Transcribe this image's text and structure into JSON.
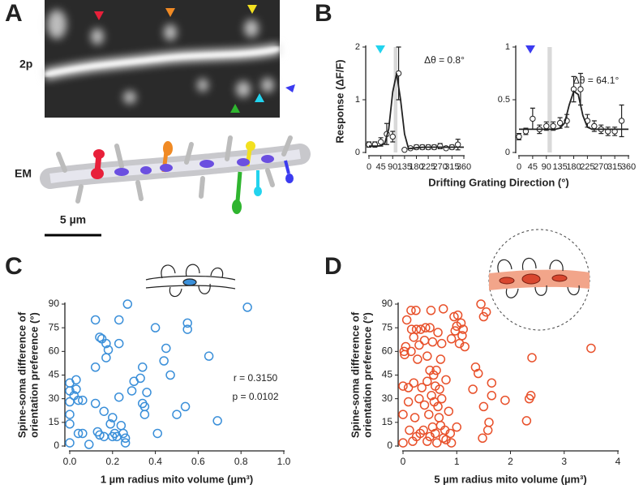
{
  "figure": {
    "panel_labels": [
      "A",
      "B",
      "C",
      "D"
    ],
    "image_labels": [
      "2p",
      "EM"
    ],
    "scale_bar": "5 µm",
    "b_ylabel": "Response (ΔF/F)",
    "b_xlabel": "Drifting Grating Direction (°)"
  },
  "chart_data": [
    {
      "type": "line",
      "color": "#222222",
      "marker_color": "#22d3ee",
      "highlight_x": [
        94,
        108
      ],
      "annotations": [
        "Δθ = 0.8°"
      ],
      "xlim": [
        0,
        360
      ],
      "xticks": [
        0,
        45,
        90,
        135,
        180,
        225,
        270,
        315,
        360
      ],
      "ylim": [
        0,
        2
      ],
      "yticks": [
        0,
        1,
        2
      ],
      "series": [
        {
          "x": [
            0,
            22.5,
            45,
            67.5,
            90,
            112.5,
            135,
            157.5,
            180,
            202.5,
            225,
            247.5,
            270,
            292.5,
            315,
            337.5
          ],
          "values": [
            0.15,
            0.15,
            0.2,
            0.35,
            0.3,
            1.5,
            0.05,
            0.08,
            0.1,
            0.1,
            0.1,
            0.1,
            0.12,
            0.08,
            0.1,
            0.15
          ],
          "errors": [
            0.05,
            0.05,
            0.08,
            0.2,
            0.1,
            0.5,
            0.02,
            0.03,
            0.04,
            0.04,
            0.04,
            0.04,
            0.05,
            0.03,
            0.04,
            0.1
          ]
        },
        {
          "x": [
            0,
            15,
            30,
            45,
            60,
            75,
            90,
            105,
            120,
            135,
            150,
            165,
            180,
            210,
            240,
            270,
            300,
            330,
            360
          ],
          "values": [
            0.12,
            0.12,
            0.12,
            0.13,
            0.17,
            0.45,
            1.15,
            1.5,
            1.0,
            0.35,
            0.07,
            0.08,
            0.09,
            0.1,
            0.1,
            0.1,
            0.1,
            0.1,
            0.1
          ]
        }
      ]
    },
    {
      "type": "line",
      "color": "#222222",
      "marker_color": "#3b3bf0",
      "highlight_x": [
        94,
        108
      ],
      "annotations": [
        "Δθ = 64.1°"
      ],
      "xlim": [
        0,
        360
      ],
      "xticks": [
        0,
        45,
        90,
        135,
        180,
        225,
        270,
        315,
        360
      ],
      "ylim": [
        0,
        1
      ],
      "yticks": [
        0,
        0.5,
        1
      ],
      "series": [
        {
          "x": [
            0,
            22.5,
            45,
            67.5,
            90,
            112.5,
            135,
            157.5,
            180,
            202.5,
            225,
            247.5,
            270,
            292.5,
            315,
            337.5
          ],
          "values": [
            0.15,
            0.2,
            0.32,
            0.22,
            0.25,
            0.25,
            0.28,
            0.3,
            0.6,
            0.6,
            0.3,
            0.25,
            0.22,
            0.2,
            0.2,
            0.3
          ],
          "errors": [
            0.03,
            0.03,
            0.1,
            0.04,
            0.04,
            0.04,
            0.05,
            0.06,
            0.12,
            0.15,
            0.06,
            0.05,
            0.04,
            0.04,
            0.04,
            0.15
          ]
        },
        {
          "x": [
            0,
            30,
            60,
            90,
            120,
            135,
            150,
            165,
            180,
            195,
            210,
            225,
            240,
            270,
            300,
            330,
            360
          ],
          "values": [
            0.22,
            0.22,
            0.22,
            0.22,
            0.22,
            0.23,
            0.28,
            0.45,
            0.58,
            0.55,
            0.35,
            0.24,
            0.22,
            0.22,
            0.22,
            0.22,
            0.22
          ]
        }
      ]
    },
    {
      "type": "scatter",
      "color": "#3a8fd9",
      "xlabel": "1 µm radius mito volume (µm³)",
      "ylabel": [
        "Spine-soma difference of",
        "orientation preference (°)"
      ],
      "annotations": [
        "r = 0.3150",
        "p = 0.0102"
      ],
      "xlim": [
        0,
        1
      ],
      "xticks": [
        {
          "value": 0,
          "label": "0.0"
        },
        0.2,
        0.4,
        0.6,
        0.8,
        {
          "value": 1,
          "label": "1.0"
        }
      ],
      "ylim": [
        0,
        90
      ],
      "yticks": [
        0,
        15,
        30,
        45,
        60,
        75,
        90
      ],
      "x": [
        0,
        0,
        0,
        0,
        0,
        0,
        0.02,
        0.03,
        0.03,
        0.04,
        0.06,
        0.06,
        0.04,
        0.09,
        0.12,
        0.12,
        0.12,
        0.13,
        0.14,
        0.14,
        0.15,
        0.16,
        0.16,
        0.17,
        0.17,
        0.18,
        0.19,
        0.2,
        0.2,
        0.21,
        0.22,
        0.23,
        0.23,
        0.23,
        0.24,
        0.25,
        0.26,
        0.26,
        0.27,
        0.29,
        0.3,
        0.33,
        0.34,
        0.34,
        0.35,
        0.35,
        0.36,
        0.4,
        0.41,
        0.44,
        0.45,
        0.47,
        0.5,
        0.54,
        0.55,
        0.55,
        0.65,
        0.69,
        0.83
      ],
      "values": [
        2,
        14,
        20,
        28,
        35,
        40,
        32,
        42,
        36,
        29,
        8,
        29,
        8,
        1,
        50,
        80,
        27,
        9,
        7,
        69,
        68,
        6,
        22,
        65,
        56,
        61,
        14,
        6,
        18,
        8,
        6,
        65,
        31,
        80,
        13,
        8,
        5,
        2,
        90,
        35,
        41,
        43,
        50,
        27,
        25,
        20,
        34,
        75,
        8,
        54,
        62,
        45,
        20,
        25,
        78,
        74,
        57,
        16,
        88
      ]
    },
    {
      "type": "scatter",
      "color": "#e8502a",
      "xlabel": "5 µm radius mito volume (µm³)",
      "ylabel": [
        "Spine-soma difference of",
        "orientation preference (°)"
      ],
      "annotations": [],
      "xlim": [
        0,
        4
      ],
      "xticks": [
        0,
        1,
        2,
        3,
        4
      ],
      "ylim": [
        0,
        90
      ],
      "yticks": [
        0,
        15,
        30,
        45,
        60,
        75,
        90
      ],
      "x": [
        0,
        0,
        0,
        0.02,
        0.03,
        0.05,
        0.07,
        0.1,
        0.1,
        0.12,
        0.15,
        0.15,
        0.16,
        0.18,
        0.2,
        0.2,
        0.22,
        0.24,
        0.25,
        0.25,
        0.27,
        0.3,
        0.3,
        0.32,
        0.33,
        0.35,
        0.38,
        0.4,
        0.4,
        0.42,
        0.45,
        0.45,
        0.45,
        0.48,
        0.5,
        0.5,
        0.5,
        0.52,
        0.53,
        0.55,
        0.55,
        0.57,
        0.58,
        0.6,
        0.6,
        0.62,
        0.63,
        0.65,
        0.65,
        0.67,
        0.68,
        0.7,
        0.7,
        0.72,
        0.72,
        0.75,
        0.75,
        0.78,
        0.8,
        0.8,
        0.85,
        0.88,
        0.9,
        0.9,
        0.95,
        0.97,
        1.0,
        1.0,
        1.02,
        1.05,
        1.08,
        1.1,
        1.12,
        1.15,
        1.3,
        1.35,
        1.4,
        1.45,
        1.48,
        1.5,
        1.5,
        1.55,
        1.58,
        1.6,
        1.65,
        1.65,
        1.9,
        2.3,
        2.35,
        2.38,
        2.4,
        3.5
      ],
      "values": [
        2,
        20,
        38,
        60,
        58,
        63,
        80,
        37,
        28,
        10,
        86,
        60,
        74,
        3,
        40,
        69,
        18,
        86,
        6,
        74,
        55,
        30,
        64,
        8,
        74,
        37,
        10,
        26,
        67,
        75,
        3,
        41,
        57,
        20,
        6,
        48,
        75,
        86,
        32,
        66,
        12,
        45,
        28,
        8,
        38,
        48,
        2,
        25,
        72,
        18,
        36,
        13,
        55,
        30,
        65,
        5,
        87,
        10,
        42,
        4,
        22,
        8,
        2,
        68,
        82,
        73,
        76,
        12,
        83,
        65,
        78,
        70,
        74,
        63,
        36,
        50,
        46,
        90,
        5,
        82,
        25,
        85,
        10,
        15,
        40,
        32,
        29,
        16,
        30,
        32,
        56,
        62
      ]
    }
  ]
}
